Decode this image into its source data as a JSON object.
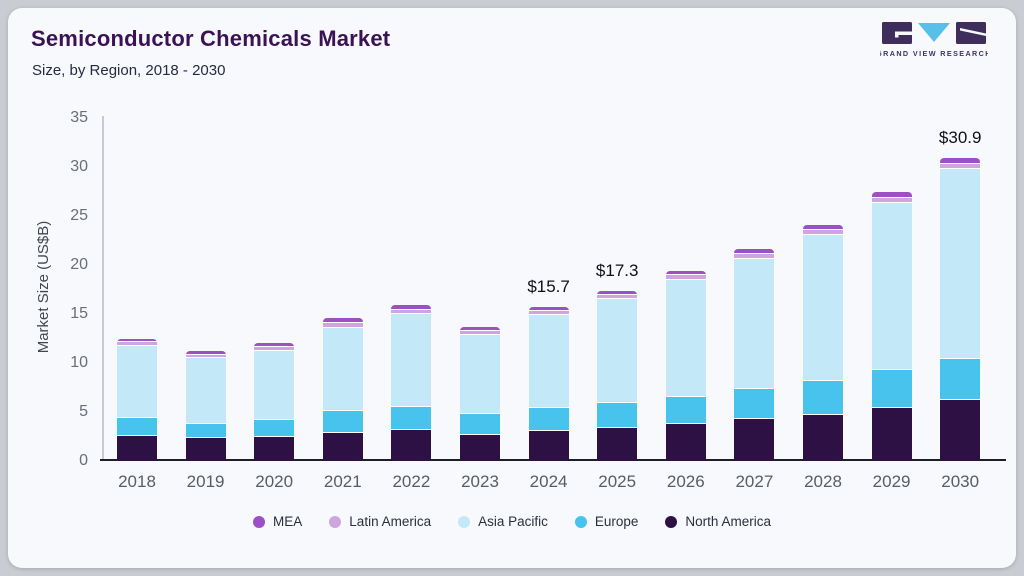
{
  "page": {
    "header": {
      "title": "Semiconductor Chemicals Market",
      "subtitle": "Size, by Region, 2018 - 2030",
      "logo_text": "GRAND VIEW RESEARCH"
    },
    "colors": {
      "card_background": "#f7f9fc",
      "frame_background": "#c9cdd3",
      "title_text": "#3b1253",
      "logo_purple": "#3f2d5c",
      "logo_blue": "#56c0e8"
    }
  },
  "chart_data": {
    "type": "bar",
    "stacked": true,
    "title": "Semiconductor Chemicals Market",
    "subtitle": "Size, by Region, 2018 - 2030",
    "xlabel": "",
    "ylabel": "Market Size (US$B)",
    "ylim": [
      0,
      35
    ],
    "yticks": [
      0,
      5,
      10,
      15,
      20,
      25,
      30,
      35
    ],
    "grid": false,
    "legend_position": "bottom",
    "categories": [
      "2018",
      "2019",
      "2020",
      "2021",
      "2022",
      "2023",
      "2024",
      "2025",
      "2026",
      "2027",
      "2028",
      "2029",
      "2030"
    ],
    "series": [
      {
        "name": "North America",
        "color": "#2d1145",
        "values": [
          2.6,
          2.4,
          2.5,
          3.0,
          3.3,
          2.8,
          3.2,
          3.5,
          3.9,
          4.4,
          4.8,
          5.5,
          6.3
        ]
      },
      {
        "name": "Europe",
        "color": "#47c3ee",
        "values": [
          1.9,
          1.5,
          1.8,
          2.2,
          2.3,
          2.1,
          2.3,
          2.5,
          2.7,
          3.0,
          3.5,
          3.9,
          4.2
        ]
      },
      {
        "name": "Asia Pacific",
        "color": "#c3e8f8",
        "values": [
          7.3,
          6.7,
          7.0,
          8.5,
          9.5,
          8.1,
          9.5,
          10.6,
          12.0,
          13.3,
          14.9,
          17.0,
          19.4
        ]
      },
      {
        "name": "Latin America",
        "color": "#cda5e0",
        "values": [
          0.4,
          0.35,
          0.4,
          0.5,
          0.45,
          0.4,
          0.4,
          0.4,
          0.45,
          0.5,
          0.5,
          0.55,
          0.5
        ]
      },
      {
        "name": "MEA",
        "color": "#9d50c6",
        "values": [
          0.3,
          0.25,
          0.3,
          0.4,
          0.35,
          0.3,
          0.3,
          0.3,
          0.35,
          0.4,
          0.4,
          0.45,
          0.5
        ]
      }
    ],
    "totals": [
      12.5,
      11.2,
      12.0,
      14.6,
      15.9,
      13.7,
      15.7,
      17.3,
      19.4,
      21.6,
      24.1,
      27.4,
      30.9
    ],
    "legend_order": [
      "MEA",
      "Latin America",
      "Asia Pacific",
      "Europe",
      "North America"
    ],
    "annotations": {
      "2024": "$15.7",
      "2025": "$17.3",
      "2030": "$30.9"
    }
  }
}
